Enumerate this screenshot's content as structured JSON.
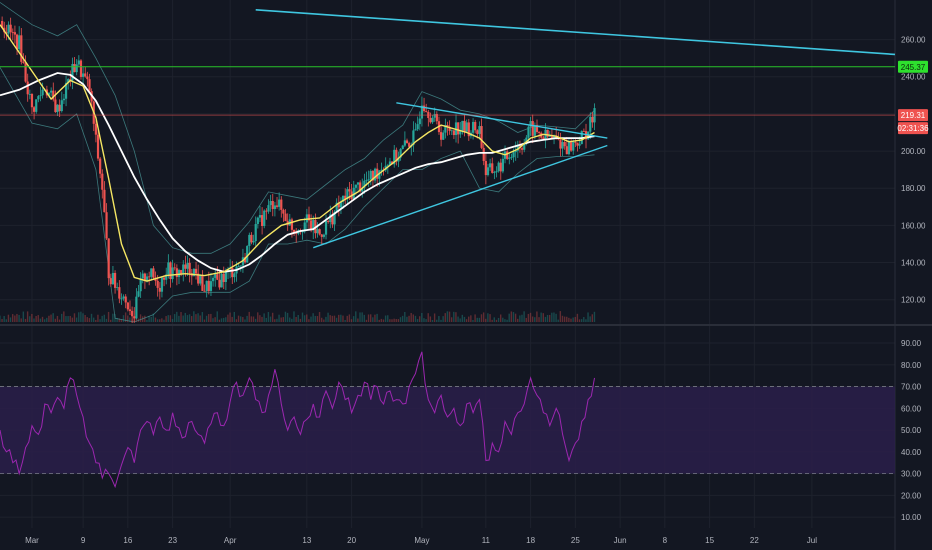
{
  "colors": {
    "background": "#131722",
    "grid": "#1e222d",
    "candle_up": "#26a69a",
    "candle_down": "#ef5350",
    "ma_fast": "#f5e663",
    "ma_slow": "#ffffff",
    "bollinger": "#4a9a9a",
    "trendline": "#3fc6e0",
    "resistance": "#29c229",
    "price_line": "#ef5350",
    "rsi_line": "#9c27b0",
    "rsi_band": "#2a1f4a",
    "axis_text": "#b2b5be"
  },
  "chart_data": [
    {
      "type": "candlestick",
      "panel": "price",
      "y_ticks": [
        "260.00",
        "240.00",
        "220.00",
        "200.00",
        "180.00",
        "160.00",
        "140.00",
        "120.00"
      ],
      "y_tick_values": [
        260,
        240,
        220,
        200,
        180,
        160,
        140,
        120
      ],
      "ylim": [
        108,
        277
      ],
      "x_ticks": [
        "Mar",
        "9",
        "16",
        "23",
        "Apr",
        "13",
        "20",
        "May",
        "11",
        "18",
        "25",
        "Jun",
        "8",
        "15",
        "22",
        "Jul"
      ],
      "x_tick_days": [
        0,
        8,
        15,
        22,
        31,
        43,
        50,
        61,
        71,
        78,
        85,
        92,
        99,
        106,
        113,
        122
      ],
      "x_range_days": [
        -5,
        135
      ],
      "data_end_day": 88,
      "close_path": [
        [
          -5,
          270
        ],
        [
          -2,
          258
        ],
        [
          0,
          222
        ],
        [
          2,
          235
        ],
        [
          4,
          222
        ],
        [
          6,
          240
        ],
        [
          7,
          248
        ],
        [
          9,
          233
        ],
        [
          10,
          205
        ],
        [
          11,
          180
        ],
        [
          12,
          135
        ],
        [
          13,
          128
        ],
        [
          15,
          118
        ],
        [
          16,
          112
        ],
        [
          17,
          128
        ],
        [
          18,
          135
        ],
        [
          20,
          128
        ],
        [
          21,
          137
        ],
        [
          22,
          134
        ],
        [
          25,
          137
        ],
        [
          27,
          126
        ],
        [
          29,
          130
        ],
        [
          31,
          135
        ],
        [
          33,
          140
        ],
        [
          34,
          152
        ],
        [
          36,
          164
        ],
        [
          38,
          174
        ],
        [
          39,
          168
        ],
        [
          41,
          158
        ],
        [
          43,
          162
        ],
        [
          45,
          155
        ],
        [
          47,
          165
        ],
        [
          49,
          175
        ],
        [
          51,
          181
        ],
        [
          53,
          185
        ],
        [
          55,
          193
        ],
        [
          57,
          197
        ],
        [
          59,
          205
        ],
        [
          60,
          208
        ],
        [
          61,
          228
        ],
        [
          62,
          222
        ],
        [
          64,
          210
        ],
        [
          66,
          213
        ],
        [
          68,
          212
        ],
        [
          70,
          212
        ],
        [
          71,
          188
        ],
        [
          73,
          191
        ],
        [
          75,
          200
        ],
        [
          77,
          205
        ],
        [
          78,
          212
        ],
        [
          80,
          208
        ],
        [
          82,
          206
        ],
        [
          84,
          202
        ],
        [
          86,
          207
        ],
        [
          87,
          212
        ],
        [
          88,
          219
        ]
      ],
      "ma_fast": [
        [
          -5,
          268
        ],
        [
          -1,
          248
        ],
        [
          3,
          228
        ],
        [
          6,
          238
        ],
        [
          8,
          235
        ],
        [
          10,
          218
        ],
        [
          12,
          185
        ],
        [
          14,
          150
        ],
        [
          16,
          132
        ],
        [
          18,
          130
        ],
        [
          21,
          133
        ],
        [
          24,
          134
        ],
        [
          27,
          133
        ],
        [
          30,
          135
        ],
        [
          33,
          141
        ],
        [
          36,
          152
        ],
        [
          39,
          160
        ],
        [
          42,
          163
        ],
        [
          45,
          164
        ],
        [
          48,
          172
        ],
        [
          51,
          178
        ],
        [
          54,
          187
        ],
        [
          57,
          195
        ],
        [
          60,
          205
        ],
        [
          62,
          210
        ],
        [
          64,
          214
        ],
        [
          66,
          212
        ],
        [
          68,
          210
        ],
        [
          70,
          207
        ],
        [
          72,
          200
        ],
        [
          74,
          198
        ],
        [
          76,
          201
        ],
        [
          78,
          207
        ],
        [
          80,
          209
        ],
        [
          82,
          208
        ],
        [
          84,
          205
        ],
        [
          86,
          206
        ],
        [
          88,
          210
        ]
      ],
      "ma_slow": [
        [
          -5,
          230
        ],
        [
          -2,
          233
        ],
        [
          1,
          238
        ],
        [
          4,
          242
        ],
        [
          6,
          241
        ],
        [
          8,
          236
        ],
        [
          10,
          227
        ],
        [
          12,
          214
        ],
        [
          14,
          200
        ],
        [
          16,
          186
        ],
        [
          18,
          174
        ],
        [
          20,
          163
        ],
        [
          22,
          153
        ],
        [
          24,
          146
        ],
        [
          26,
          141
        ],
        [
          28,
          137
        ],
        [
          30,
          135
        ],
        [
          32,
          136
        ],
        [
          34,
          139
        ],
        [
          36,
          144
        ],
        [
          38,
          150
        ],
        [
          40,
          155
        ],
        [
          42,
          157
        ],
        [
          44,
          158
        ],
        [
          46,
          163
        ],
        [
          48,
          168
        ],
        [
          50,
          173
        ],
        [
          52,
          178
        ],
        [
          54,
          182
        ],
        [
          56,
          185
        ],
        [
          58,
          188
        ],
        [
          60,
          191
        ],
        [
          62,
          193
        ],
        [
          64,
          194
        ],
        [
          66,
          196
        ],
        [
          68,
          198
        ],
        [
          70,
          199
        ],
        [
          72,
          199
        ],
        [
          74,
          201
        ],
        [
          76,
          203
        ],
        [
          78,
          205
        ],
        [
          80,
          206
        ],
        [
          82,
          207
        ],
        [
          84,
          207
        ],
        [
          86,
          207
        ],
        [
          88,
          208
        ]
      ],
      "bollinger_upper": [
        [
          -5,
          280
        ],
        [
          0,
          268
        ],
        [
          4,
          262
        ],
        [
          7,
          268
        ],
        [
          10,
          250
        ],
        [
          13,
          230
        ],
        [
          16,
          200
        ],
        [
          19,
          160
        ],
        [
          22,
          148
        ],
        [
          25,
          145
        ],
        [
          28,
          145
        ],
        [
          31,
          150
        ],
        [
          34,
          162
        ],
        [
          37,
          178
        ],
        [
          40,
          176
        ],
        [
          43,
          174
        ],
        [
          46,
          182
        ],
        [
          49,
          190
        ],
        [
          52,
          196
        ],
        [
          55,
          206
        ],
        [
          58,
          214
        ],
        [
          61,
          232
        ],
        [
          64,
          228
        ],
        [
          67,
          222
        ],
        [
          70,
          220
        ],
        [
          73,
          216
        ],
        [
          76,
          210
        ],
        [
          79,
          214
        ],
        [
          82,
          213
        ],
        [
          85,
          212
        ],
        [
          88,
          222
        ]
      ],
      "bollinger_lower": [
        [
          -5,
          245
        ],
        [
          0,
          215
        ],
        [
          4,
          212
        ],
        [
          7,
          220
        ],
        [
          10,
          190
        ],
        [
          13,
          110
        ],
        [
          16,
          108
        ],
        [
          19,
          112
        ],
        [
          22,
          122
        ],
        [
          25,
          124
        ],
        [
          28,
          124
        ],
        [
          31,
          124
        ],
        [
          34,
          130
        ],
        [
          37,
          150
        ],
        [
          40,
          150
        ],
        [
          43,
          152
        ],
        [
          46,
          150
        ],
        [
          49,
          158
        ],
        [
          52,
          170
        ],
        [
          55,
          180
        ],
        [
          58,
          190
        ],
        [
          61,
          190
        ],
        [
          64,
          196
        ],
        [
          67,
          200
        ],
        [
          70,
          180
        ],
        [
          73,
          178
        ],
        [
          76,
          188
        ],
        [
          79,
          196
        ],
        [
          82,
          197
        ],
        [
          85,
          197
        ],
        [
          88,
          198
        ]
      ],
      "trendline_upper": [
        [
          57,
          226
        ],
        [
          90,
          207
        ]
      ],
      "trendline_lower": [
        [
          44,
          148
        ],
        [
          90,
          203
        ]
      ],
      "long_trendline": [
        [
          35,
          276
        ],
        [
          135,
          252
        ]
      ],
      "resistance_level": 245.37,
      "last_price": 219.31,
      "badges": {
        "resistance": "245.37",
        "price": "219.31",
        "countdown": "02:31:36"
      }
    },
    {
      "type": "line",
      "panel": "rsi",
      "y_ticks": [
        "90.00",
        "80.00",
        "70.00",
        "60.00",
        "50.00",
        "40.00",
        "30.00",
        "20.00",
        "10.00"
      ],
      "y_tick_values": [
        90,
        80,
        70,
        60,
        50,
        40,
        30,
        20,
        10
      ],
      "ylim": [
        5,
        96
      ],
      "band": [
        30,
        70
      ],
      "rsi_path": [
        [
          -5,
          50
        ],
        [
          -4,
          40
        ],
        [
          -3,
          35
        ],
        [
          -2,
          30
        ],
        [
          -1,
          42
        ],
        [
          0,
          52
        ],
        [
          1,
          48
        ],
        [
          2,
          62
        ],
        [
          3,
          58
        ],
        [
          4,
          65
        ],
        [
          5,
          60
        ],
        [
          6,
          74
        ],
        [
          7,
          66
        ],
        [
          8,
          56
        ],
        [
          9,
          44
        ],
        [
          10,
          35
        ],
        [
          11,
          28
        ],
        [
          12,
          30
        ],
        [
          13,
          24
        ],
        [
          14,
          34
        ],
        [
          15,
          42
        ],
        [
          16,
          35
        ],
        [
          17,
          50
        ],
        [
          18,
          54
        ],
        [
          19,
          48
        ],
        [
          20,
          56
        ],
        [
          21,
          50
        ],
        [
          22,
          58
        ],
        [
          23,
          51
        ],
        [
          24,
          47
        ],
        [
          25,
          54
        ],
        [
          26,
          48
        ],
        [
          27,
          44
        ],
        [
          28,
          53
        ],
        [
          29,
          58
        ],
        [
          30,
          52
        ],
        [
          31,
          63
        ],
        [
          32,
          72
        ],
        [
          33,
          66
        ],
        [
          34,
          74
        ],
        [
          35,
          64
        ],
        [
          36,
          58
        ],
        [
          37,
          66
        ],
        [
          38,
          78
        ],
        [
          39,
          62
        ],
        [
          40,
          50
        ],
        [
          41,
          56
        ],
        [
          42,
          48
        ],
        [
          43,
          55
        ],
        [
          44,
          62
        ],
        [
          45,
          56
        ],
        [
          46,
          68
        ],
        [
          47,
          60
        ],
        [
          48,
          72
        ],
        [
          49,
          64
        ],
        [
          50,
          58
        ],
        [
          51,
          66
        ],
        [
          52,
          72
        ],
        [
          53,
          64
        ],
        [
          54,
          70
        ],
        [
          55,
          62
        ],
        [
          56,
          68
        ],
        [
          57,
          64
        ],
        [
          58,
          62
        ],
        [
          59,
          70
        ],
        [
          60,
          76
        ],
        [
          61,
          86
        ],
        [
          62,
          64
        ],
        [
          63,
          58
        ],
        [
          64,
          66
        ],
        [
          65,
          56
        ],
        [
          66,
          60
        ],
        [
          67,
          52
        ],
        [
          68,
          62
        ],
        [
          69,
          58
        ],
        [
          70,
          64
        ],
        [
          71,
          36
        ],
        [
          72,
          44
        ],
        [
          73,
          40
        ],
        [
          74,
          54
        ],
        [
          75,
          48
        ],
        [
          76,
          58
        ],
        [
          77,
          62
        ],
        [
          78,
          74
        ],
        [
          79,
          66
        ],
        [
          80,
          58
        ],
        [
          81,
          52
        ],
        [
          82,
          60
        ],
        [
          83,
          48
        ],
        [
          84,
          36
        ],
        [
          85,
          44
        ],
        [
          86,
          54
        ],
        [
          87,
          64
        ],
        [
          88,
          74
        ]
      ]
    }
  ]
}
